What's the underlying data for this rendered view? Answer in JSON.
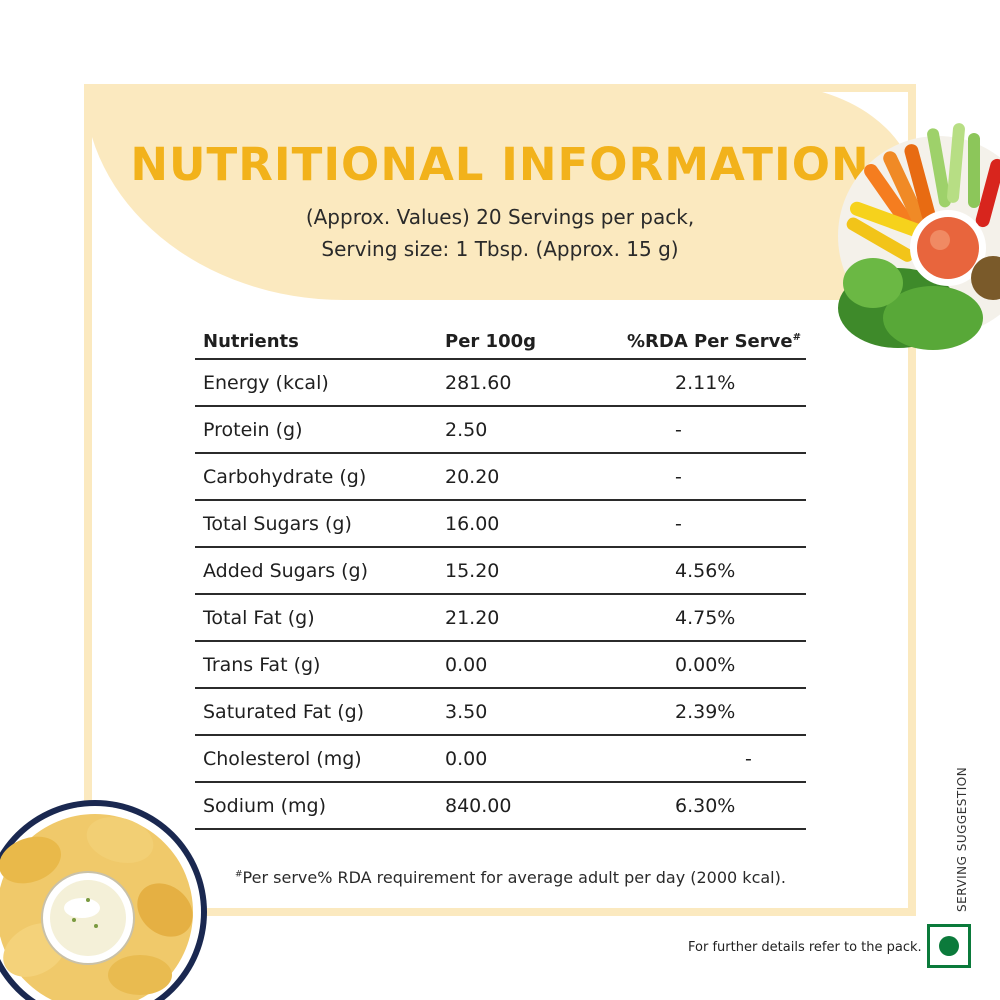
{
  "title": "NUTRITIONAL INFORMATION",
  "subtitle": {
    "line1": "(Approx. Values) 20 Servings per pack,",
    "line2": "Serving size: 1 Tbsp. (Approx. 15 g)"
  },
  "table": {
    "headers": [
      "Nutrients",
      "Per 100g",
      "%RDA Per Serve",
      "#"
    ],
    "rows": [
      {
        "name": "Energy (kcal)",
        "per100": "281.60",
        "rda": "2.11%"
      },
      {
        "name": "Protein (g)",
        "per100": "2.50",
        "rda": "-"
      },
      {
        "name": "Carbohydrate (g)",
        "per100": "20.20",
        "rda": "-"
      },
      {
        "name": "Total Sugars (g)",
        "per100": "16.00",
        "rda": "-"
      },
      {
        "name": "Added Sugars (g)",
        "per100": "15.20",
        "rda": "4.56%"
      },
      {
        "name": "Total Fat (g)",
        "per100": "21.20",
        "rda": "4.75%"
      },
      {
        "name": "Trans Fat (g)",
        "per100": "0.00",
        "rda": "0.00%"
      },
      {
        "name": "Saturated Fat (g)",
        "per100": "3.50",
        "rda": "2.39%"
      },
      {
        "name": "Cholesterol (mg)",
        "per100": "0.00",
        "rda": "-"
      },
      {
        "name": "Sodium (mg)",
        "per100": "840.00",
        "rda": "6.30%"
      }
    ]
  },
  "footnote": {
    "mark": "#",
    "text": "Per serve% RDA requirement for average adult per day (2000 kcal)."
  },
  "side_label": "SERVING SUGGESTION",
  "further_details": "For further details refer to the pack.",
  "colors": {
    "title": "#f2b21b",
    "header_bg": "#fbe9bf",
    "veg_mark": "#0b7a3b"
  }
}
